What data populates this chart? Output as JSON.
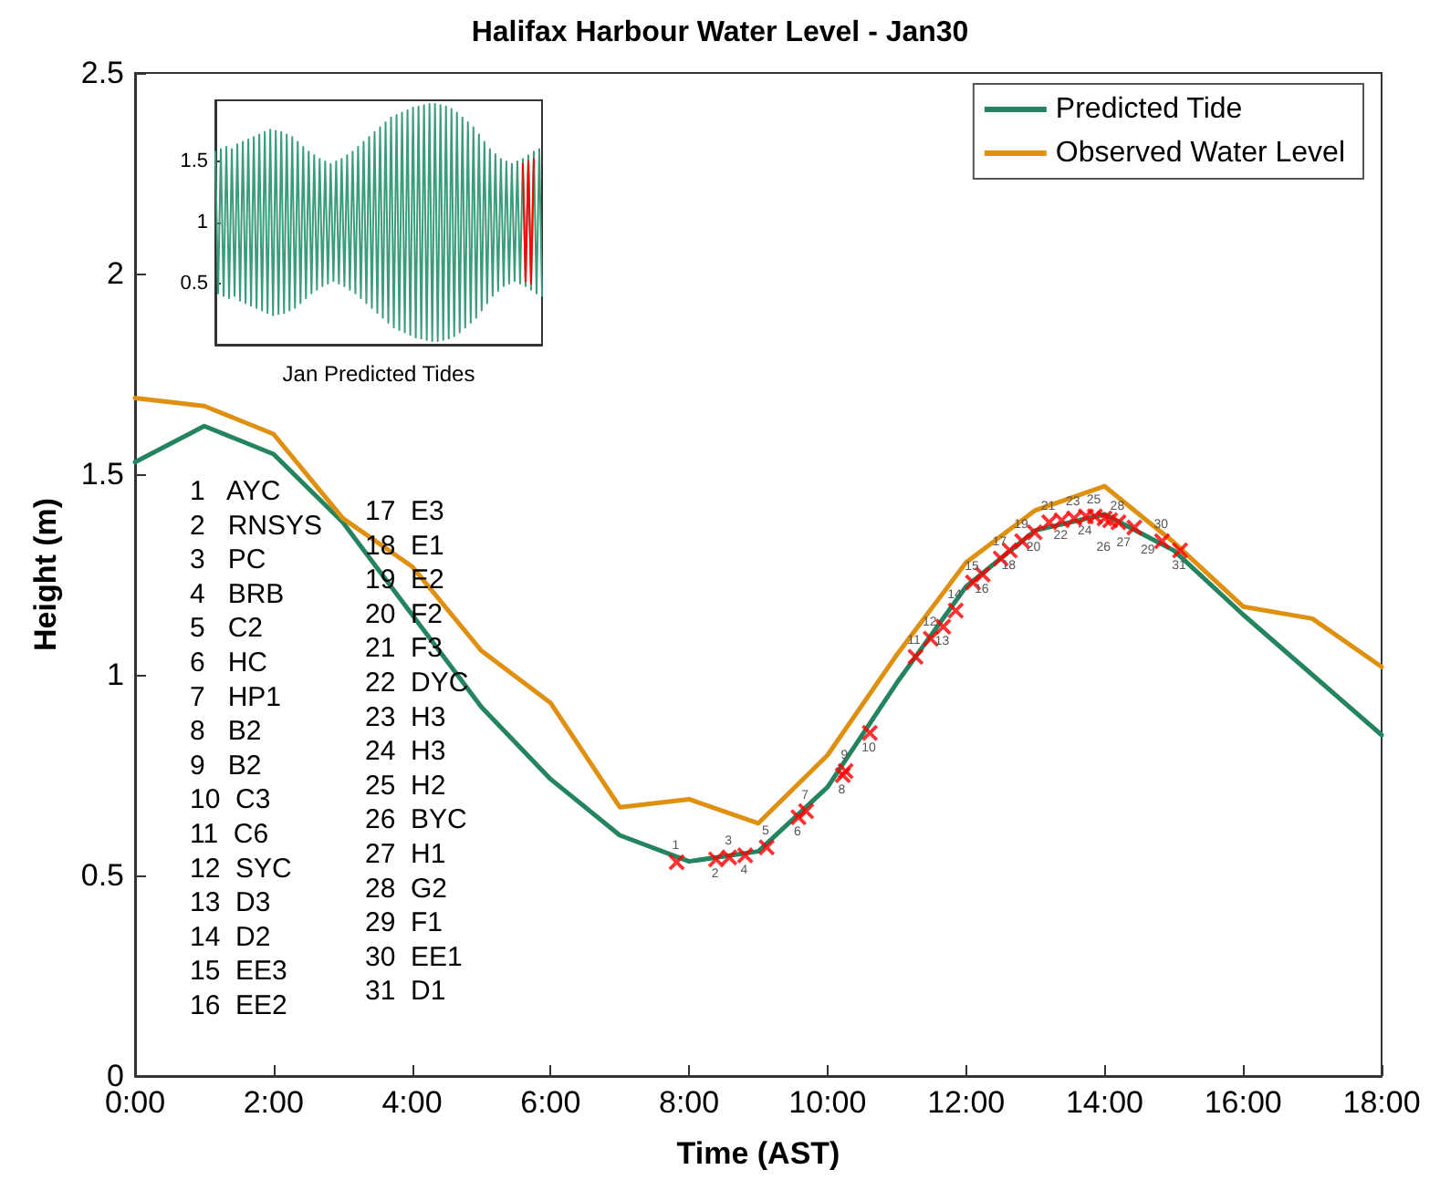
{
  "chart_data": [
    {
      "type": "line",
      "title": "Halifax Harbour Water Level - Jan30",
      "xlabel": "Time (AST)",
      "ylabel": "Height (m)",
      "xlim": [
        0,
        18
      ],
      "xticks": [
        {
          "value": 0,
          "label": "0:00"
        },
        {
          "value": 2,
          "label": "2:00"
        },
        {
          "value": 4,
          "label": "4:00"
        },
        {
          "value": 6,
          "label": "6:00"
        },
        {
          "value": 8,
          "label": "8:00"
        },
        {
          "value": 10,
          "label": "10:00"
        },
        {
          "value": 12,
          "label": "12:00"
        },
        {
          "value": 14,
          "label": "14:00"
        },
        {
          "value": 16,
          "label": "16:00"
        },
        {
          "value": 18,
          "label": "18:00"
        }
      ],
      "ylim": [
        0,
        2.5
      ],
      "yticks": [
        0,
        0.5,
        1,
        1.5,
        2,
        2.5
      ],
      "grid": false,
      "legend": "top right",
      "marker": "none",
      "line_style": "solid",
      "x": [
        0,
        1,
        2,
        3,
        4,
        5,
        6,
        7,
        8,
        9,
        10,
        11,
        12,
        13,
        14,
        15,
        16,
        17,
        18
      ],
      "series": [
        {
          "name": "Predicted Tide",
          "color": "#23845f",
          "values": [
            1.53,
            1.62,
            1.55,
            1.38,
            1.15,
            0.92,
            0.74,
            0.6,
            0.535,
            0.56,
            0.72,
            0.98,
            1.22,
            1.36,
            1.4,
            1.31,
            1.15,
            1.0,
            0.85
          ]
        },
        {
          "name": "Observed Water Level",
          "color": "#e0900f",
          "values": [
            1.69,
            1.67,
            1.6,
            1.39,
            1.27,
            1.06,
            0.93,
            0.67,
            0.69,
            0.63,
            0.8,
            1.05,
            1.28,
            1.41,
            1.47,
            1.33,
            1.17,
            1.14,
            1.02
          ]
        },
        {
          "type": "scatter",
          "marker": "cross",
          "color": "#ff0000",
          "x": [
            7.82,
            8.39,
            8.58,
            8.81,
            9.12,
            9.58,
            9.69,
            10.22,
            10.26,
            10.61,
            11.27,
            11.49,
            11.67,
            11.85,
            12.1,
            12.24,
            12.5,
            12.63,
            12.81,
            12.99,
            13.2,
            13.38,
            13.56,
            13.73,
            13.86,
            14.0,
            14.08,
            14.2,
            14.43,
            14.83,
            15.09
          ],
          "values": [
            0.533,
            0.54,
            0.545,
            0.55,
            0.57,
            0.645,
            0.66,
            0.75,
            0.76,
            0.855,
            1.045,
            1.09,
            1.12,
            1.16,
            1.23,
            1.25,
            1.29,
            1.31,
            1.333,
            1.355,
            1.38,
            1.385,
            1.39,
            1.395,
            1.395,
            1.39,
            1.385,
            1.38,
            1.367,
            1.333,
            1.31
          ]
        }
      ],
      "annotations": [
        {
          "text": "1",
          "x": 7.82,
          "y": 0.533
        },
        {
          "text": "2",
          "x": 8.39,
          "y": 0.54
        },
        {
          "text": "3",
          "x": 8.58,
          "y": 0.545
        },
        {
          "text": "4",
          "x": 8.81,
          "y": 0.55
        },
        {
          "text": "5",
          "x": 9.12,
          "y": 0.57
        },
        {
          "text": "6",
          "x": 9.58,
          "y": 0.645
        },
        {
          "text": "7",
          "x": 9.69,
          "y": 0.66
        },
        {
          "text": "8",
          "x": 10.22,
          "y": 0.75
        },
        {
          "text": "9",
          "x": 10.26,
          "y": 0.76
        },
        {
          "text": "10",
          "x": 10.61,
          "y": 0.855
        },
        {
          "text": "11",
          "x": 11.27,
          "y": 1.045
        },
        {
          "text": "12",
          "x": 11.49,
          "y": 1.09
        },
        {
          "text": "13",
          "x": 11.67,
          "y": 1.12
        },
        {
          "text": "14",
          "x": 11.85,
          "y": 1.16
        },
        {
          "text": "15",
          "x": 12.1,
          "y": 1.23
        },
        {
          "text": "16",
          "x": 12.24,
          "y": 1.25
        },
        {
          "text": "17",
          "x": 12.5,
          "y": 1.29
        },
        {
          "text": "18",
          "x": 12.63,
          "y": 1.31
        },
        {
          "text": "19",
          "x": 12.81,
          "y": 1.333
        },
        {
          "text": "20",
          "x": 12.99,
          "y": 1.355
        },
        {
          "text": "21",
          "x": 13.2,
          "y": 1.38
        },
        {
          "text": "22",
          "x": 13.38,
          "y": 1.385
        },
        {
          "text": "23",
          "x": 13.56,
          "y": 1.39
        },
        {
          "text": "24",
          "x": 13.73,
          "y": 1.395
        },
        {
          "text": "25",
          "x": 13.86,
          "y": 1.395
        },
        {
          "text": "26",
          "x": 14.0,
          "y": 1.39
        },
        {
          "text": "27",
          "x": 14.08,
          "y": 1.385
        },
        {
          "text": "28",
          "x": 14.2,
          "y": 1.38
        },
        {
          "text": "29",
          "x": 14.43,
          "y": 1.367
        },
        {
          "text": "30",
          "x": 14.83,
          "y": 1.333
        },
        {
          "text": "31",
          "x": 15.09,
          "y": 1.31
        },
        "1   AYC",
        "2   RNSYS",
        "3   PC",
        "4   BRB",
        "5   C2",
        "6   HC",
        "7   HP1",
        "8   B2",
        "9   B2",
        "10  C3",
        "11  C6",
        "12  SYC",
        "13  D3",
        "14  D2",
        "15  EE3",
        "16  EE2",
        "17  E3",
        "18  E1",
        "19  E2",
        "20  F2",
        "21  F3",
        "22  DYC",
        "23  H3",
        "24  H3",
        "25  H2",
        "26  BYC",
        "27  H1",
        "28  G2",
        "29  F1",
        "30  EE1",
        "31  D1"
      ]
    },
    {
      "type": "line",
      "xlabel": "Jan Predicted Tides",
      "ylim": [
        0,
        2
      ],
      "yticks": [
        0.5,
        1,
        1.5
      ],
      "tick_labels": "y",
      "grid": false,
      "marker": "none",
      "categories": [
        null,
        null,
        null,
        null,
        null,
        null,
        null,
        null,
        null,
        null,
        null,
        null,
        null,
        null,
        null,
        null,
        null,
        null,
        null,
        null,
        null,
        null,
        null,
        null,
        null,
        null,
        null,
        null,
        null,
        null,
        null,
        null,
        null,
        null,
        null,
        null,
        null,
        null,
        null,
        null,
        null,
        null,
        null,
        null,
        null,
        null,
        null,
        null,
        null,
        null,
        null,
        null,
        null,
        null,
        null,
        null,
        null,
        null,
        null,
        null,
        null,
        null,
        null,
        null,
        null,
        null,
        null,
        null,
        null,
        null,
        null,
        null,
        null,
        null,
        null,
        null,
        null,
        null,
        null,
        null,
        null,
        null,
        null,
        null,
        null,
        null,
        null,
        null,
        null,
        null,
        null,
        null,
        null,
        null,
        null,
        null,
        null,
        null,
        null,
        null,
        null,
        null,
        null,
        null,
        null,
        null,
        null,
        null,
        null,
        null,
        null,
        null,
        null,
        null,
        null,
        null,
        null,
        null,
        null,
        null
      ],
      "series": [
        {
          "color": "#3b9c7a",
          "values": [
            1.58,
            0.42,
            1.6,
            0.4,
            1.62,
            0.38,
            1.6,
            0.4,
            1.64,
            0.36,
            1.66,
            0.34,
            1.68,
            0.32,
            1.7,
            0.3,
            1.72,
            0.28,
            1.74,
            0.26,
            1.76,
            0.24,
            1.75,
            0.25,
            1.74,
            0.26,
            1.72,
            0.28,
            1.7,
            0.3,
            1.66,
            0.34,
            1.62,
            0.38,
            1.58,
            0.42,
            1.55,
            0.45,
            1.52,
            0.48,
            1.5,
            0.5,
            1.48,
            0.52,
            1.5,
            0.5,
            1.52,
            0.48,
            1.55,
            0.45,
            1.58,
            0.42,
            1.62,
            0.38,
            1.66,
            0.34,
            1.7,
            0.3,
            1.74,
            0.26,
            1.78,
            0.22,
            1.82,
            0.18,
            1.86,
            0.14,
            1.88,
            0.12,
            1.9,
            0.1,
            1.92,
            0.08,
            1.94,
            0.06,
            1.95,
            0.05,
            1.96,
            0.04,
            1.97,
            0.03,
            1.97,
            0.03,
            1.96,
            0.04,
            1.95,
            0.05,
            1.93,
            0.07,
            1.9,
            0.1,
            1.86,
            0.14,
            1.82,
            0.18,
            1.78,
            0.22,
            1.72,
            0.28,
            1.66,
            0.34,
            1.6,
            0.4,
            1.56,
            0.44,
            1.52,
            0.48,
            1.5,
            0.5,
            1.48,
            0.52,
            1.5,
            0.5,
            1.52,
            0.48,
            1.55,
            0.45,
            1.58,
            0.42,
            1.6,
            0.4
          ]
        },
        {
          "color": "#ff0000",
          "values": [
            null,
            null,
            null,
            null,
            null,
            null,
            null,
            null,
            null,
            null,
            null,
            null,
            null,
            null,
            null,
            null,
            null,
            null,
            null,
            null,
            null,
            null,
            null,
            null,
            null,
            null,
            null,
            null,
            null,
            null,
            null,
            null,
            null,
            null,
            null,
            null,
            null,
            null,
            null,
            null,
            null,
            null,
            null,
            null,
            null,
            null,
            null,
            null,
            null,
            null,
            null,
            null,
            null,
            null,
            null,
            null,
            null,
            null,
            null,
            null,
            null,
            null,
            null,
            null,
            null,
            null,
            null,
            null,
            null,
            null,
            null,
            null,
            null,
            null,
            null,
            null,
            null,
            null,
            null,
            null,
            null,
            null,
            null,
            null,
            null,
            null,
            null,
            null,
            null,
            null,
            null,
            null,
            null,
            null,
            null,
            null,
            null,
            null,
            null,
            null,
            null,
            null,
            null,
            null,
            null,
            null,
            null,
            null,
            null,
            null,
            null,
            null,
            1.48,
            0.52,
            1.5,
            0.5,
            1.52,
            null,
            null,
            null
          ]
        }
      ]
    }
  ]
}
